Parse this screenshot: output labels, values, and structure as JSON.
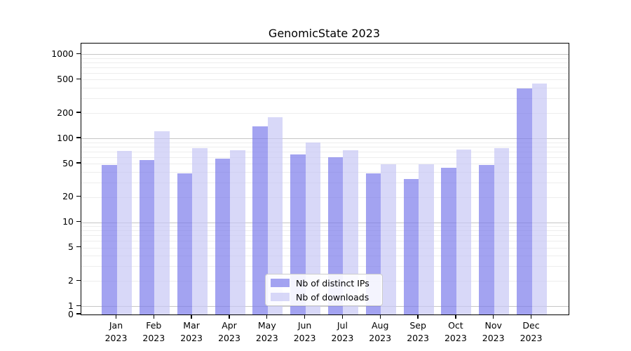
{
  "title": "GenomicState 2023",
  "legend": {
    "items": [
      {
        "label": "Nb of distinct IPs"
      },
      {
        "label": "Nb of downloads"
      }
    ]
  },
  "chart_data": {
    "type": "bar",
    "title": "GenomicState 2023",
    "categories": [
      "Jan 2023",
      "Feb 2023",
      "Mar 2023",
      "Apr 2023",
      "May 2023",
      "Jun 2023",
      "Jul 2023",
      "Aug 2023",
      "Sep 2023",
      "Oct 2023",
      "Nov 2023",
      "Dec 2023"
    ],
    "series": [
      {
        "name": "Nb of distinct IPs",
        "color": "rgba(119,119,234,0.68)",
        "color_hex": "#a4a4f0",
        "values": [
          48,
          55,
          38,
          57,
          138,
          64,
          60,
          38,
          33,
          45,
          48,
          395
        ]
      },
      {
        "name": "Nb of downloads",
        "color": "rgba(198,198,245,0.68)",
        "color_hex": "#d8d8f8",
        "values": [
          71,
          122,
          76,
          72,
          178,
          90,
          72,
          49,
          49,
          73,
          77,
          450
        ]
      }
    ],
    "xlabel": "",
    "ylabel": "",
    "yscale": "log",
    "ylim": [
      0,
      1300
    ],
    "ytick_labels": [
      "1000",
      "500",
      "200",
      "100",
      "50",
      "20",
      "10",
      "5",
      "2",
      "1",
      "0"
    ],
    "ytick_values": [
      1000,
      500,
      200,
      100,
      50,
      20,
      10,
      5,
      2,
      1,
      0
    ],
    "grid": "horizontal",
    "legend_position": "lower-center",
    "grid_major_color": "#c6c6c6",
    "grid_minor_color": "#ededed"
  }
}
